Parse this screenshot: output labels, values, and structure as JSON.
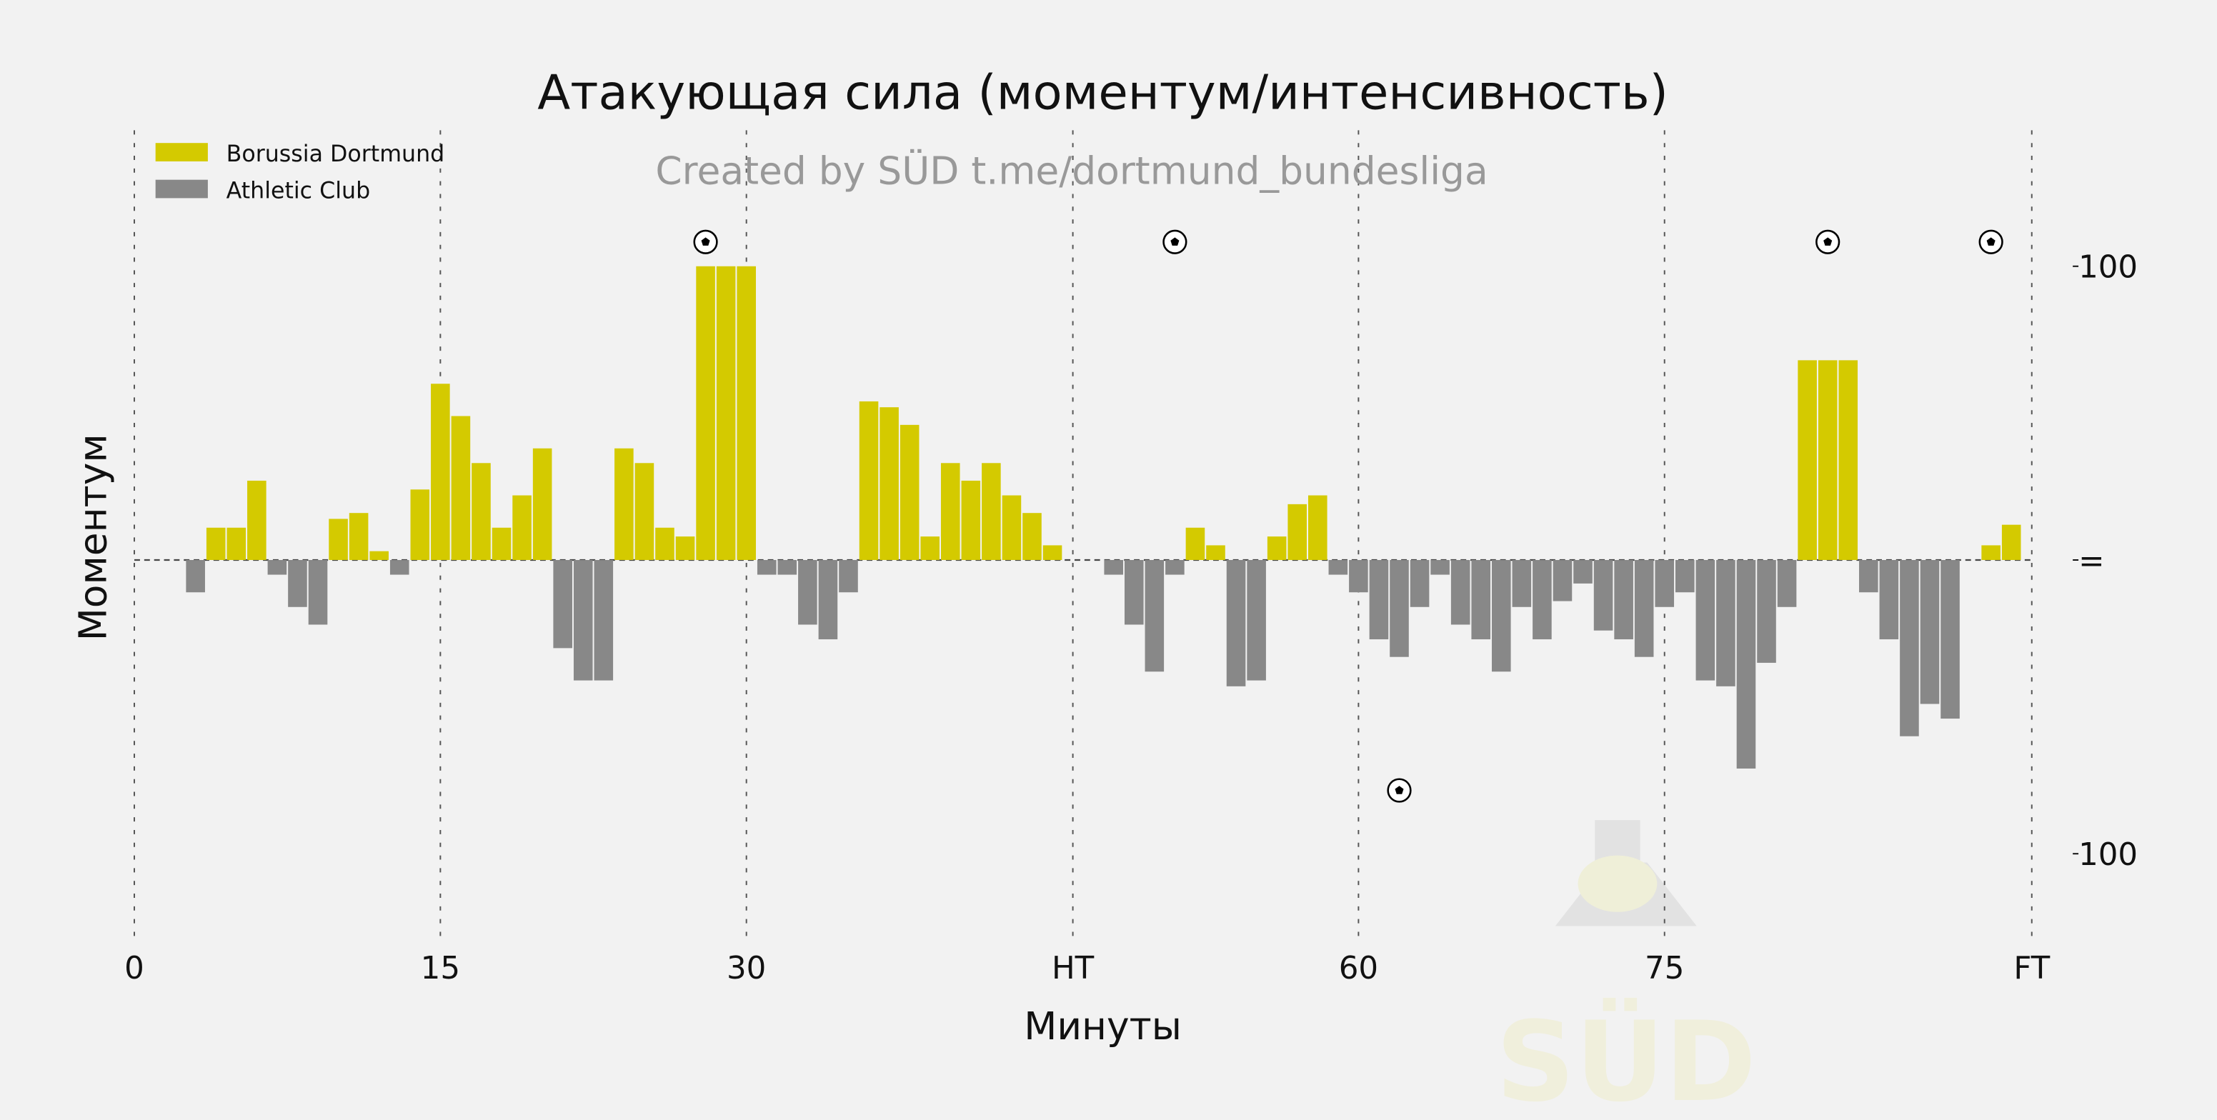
{
  "chart_data": {
    "type": "bar",
    "title": "Атакующая сила (моментум/интенсивность)",
    "subtitle": "Created by SÜD t.me/dortmund_bundesliga",
    "xlabel": "Минуты",
    "ylabel": "Моментум",
    "xlim": [
      0,
      93
    ],
    "ylim": [
      -130,
      130
    ],
    "x_ticks": [
      {
        "value": 0,
        "label": "0"
      },
      {
        "value": 15,
        "label": "15"
      },
      {
        "value": 30,
        "label": "30"
      },
      {
        "value": 46,
        "label": "HT"
      },
      {
        "value": 60,
        "label": "60"
      },
      {
        "value": 75,
        "label": "75"
      },
      {
        "value": 93,
        "label": "FT"
      }
    ],
    "y_ticks": [
      {
        "value": 100,
        "label": "100"
      },
      {
        "value": 0,
        "label": "="
      },
      {
        "value": -100,
        "label": "100"
      }
    ],
    "grid": "vertical dotted",
    "legend": "top-left",
    "series": [
      {
        "name": "Borussia Dortmund",
        "color": "#d4ca00"
      },
      {
        "name": "Athletic Club",
        "color": "#888888"
      }
    ],
    "x": [
      3,
      4,
      5,
      6,
      7,
      8,
      9,
      10,
      11,
      12,
      13,
      14,
      15,
      16,
      17,
      18,
      19,
      20,
      21,
      22,
      23,
      24,
      25,
      26,
      27,
      28,
      29,
      30,
      31,
      32,
      33,
      34,
      35,
      36,
      37,
      38,
      39,
      40,
      41,
      42,
      43,
      44,
      45,
      48,
      49,
      50,
      51,
      52,
      53,
      54,
      55,
      56,
      57,
      58,
      59,
      60,
      61,
      62,
      63,
      64,
      65,
      66,
      67,
      68,
      69,
      70,
      71,
      72,
      73,
      74,
      75,
      76,
      77,
      78,
      79,
      80,
      81,
      82,
      83,
      84,
      85,
      86,
      87,
      88,
      89,
      91,
      92
    ],
    "values": [
      -11,
      11,
      11,
      27,
      -5,
      -16,
      -22,
      14,
      16,
      3,
      -5,
      24,
      60,
      49,
      33,
      11,
      22,
      38,
      -30,
      -41,
      -41,
      38,
      33,
      11,
      8,
      100,
      100,
      100,
      -5,
      -5,
      -22,
      -27,
      -11,
      54,
      52,
      46,
      8,
      33,
      27,
      33,
      22,
      16,
      5,
      -5,
      -22,
      -38,
      -5,
      11,
      5,
      -43,
      -41,
      8,
      19,
      22,
      -5,
      -11,
      -27,
      -33,
      -16,
      -5,
      -22,
      -27,
      -38,
      -16,
      -27,
      -14,
      -8,
      -24,
      -27,
      -33,
      -16,
      -11,
      -41,
      -43,
      -71,
      -35,
      -16,
      68,
      68,
      68,
      -11,
      -27,
      -60,
      -49,
      -54,
      5,
      12
    ],
    "goals": [
      {
        "team": "Borussia Dortmund",
        "minute": 28
      },
      {
        "team": "Borussia Dortmund",
        "minute": 51
      },
      {
        "team": "Athletic Club",
        "minute": 62
      },
      {
        "team": "Borussia Dortmund",
        "minute": 83
      },
      {
        "team": "Borussia Dortmund",
        "minute": 91
      }
    ],
    "goal_icon": "soccer-ball-icon"
  },
  "watermark": {
    "text": "SÜD"
  }
}
